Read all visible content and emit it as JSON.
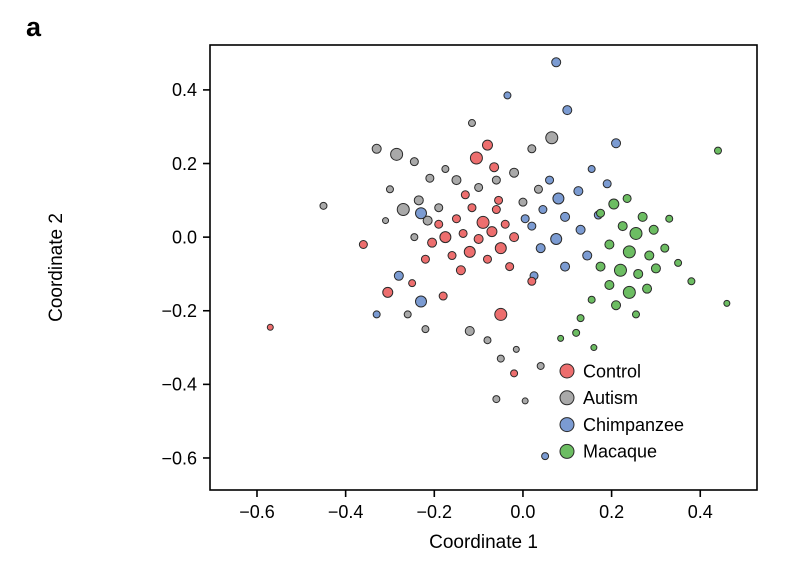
{
  "panel_label": "a",
  "chart_data": {
    "type": "scatter",
    "title": "",
    "xlabel": "Coordinate 1",
    "ylabel": "Coordinate 2",
    "xlim": [
      -0.706,
      0.528
    ],
    "ylim": [
      -0.687,
      0.522
    ],
    "xticks": [
      -0.6,
      -0.4,
      -0.2,
      0.0,
      0.2,
      0.4
    ],
    "xtick_labels": [
      "−0.6",
      "−0.4",
      "−0.2",
      "0.0",
      "0.2",
      "0.4"
    ],
    "yticks": [
      -0.6,
      -0.4,
      -0.2,
      0.0,
      0.2,
      0.4
    ],
    "ytick_labels": [
      "−0.6",
      "−0.4",
      "−0.2",
      "0.0",
      "0.2",
      "0.4"
    ],
    "grid": false,
    "legend_position": "inside-bottom-right",
    "point_stroke": "#2a2a2a",
    "frame_color": "#000000",
    "background": "#ffffff",
    "series": [
      {
        "name": "Control",
        "color": "#ed6e6e",
        "points": [
          [
            -0.08,
            0.25,
            5
          ],
          [
            -0.105,
            0.215,
            6
          ],
          [
            -0.13,
            0.115,
            4
          ],
          [
            -0.055,
            0.1,
            4
          ],
          [
            -0.065,
            0.19,
            4.5
          ],
          [
            -0.36,
            -0.02,
            4
          ],
          [
            -0.57,
            -0.245,
            3
          ],
          [
            -0.305,
            -0.15,
            5
          ],
          [
            -0.25,
            -0.125,
            3.5
          ],
          [
            -0.22,
            -0.06,
            4
          ],
          [
            -0.205,
            -0.015,
            4.5
          ],
          [
            -0.19,
            0.035,
            4
          ],
          [
            -0.175,
            0.0,
            5.5
          ],
          [
            -0.16,
            -0.05,
            4
          ],
          [
            -0.15,
            0.05,
            4
          ],
          [
            -0.14,
            -0.09,
            4.5
          ],
          [
            -0.135,
            0.01,
            4
          ],
          [
            -0.12,
            -0.04,
            5.5
          ],
          [
            -0.115,
            0.08,
            4
          ],
          [
            -0.1,
            -0.005,
            4.5
          ],
          [
            -0.09,
            0.04,
            6
          ],
          [
            -0.08,
            -0.06,
            4
          ],
          [
            -0.07,
            0.015,
            5
          ],
          [
            -0.06,
            0.075,
            4
          ],
          [
            -0.05,
            -0.03,
            5.5
          ],
          [
            -0.04,
            0.035,
            4
          ],
          [
            -0.03,
            -0.08,
            4
          ],
          [
            -0.02,
            0.0,
            4.5
          ],
          [
            -0.05,
            -0.21,
            6
          ],
          [
            -0.02,
            -0.37,
            3.5
          ],
          [
            0.02,
            -0.12,
            4
          ],
          [
            -0.18,
            -0.16,
            4
          ]
        ]
      },
      {
        "name": "Autism",
        "color": "#a9a9a9",
        "points": [
          [
            -0.45,
            0.085,
            3.5
          ],
          [
            -0.33,
            0.24,
            4.5
          ],
          [
            -0.285,
            0.225,
            6
          ],
          [
            -0.245,
            0.205,
            4
          ],
          [
            -0.3,
            0.13,
            3.5
          ],
          [
            -0.27,
            0.075,
            6
          ],
          [
            -0.235,
            0.1,
            4.5
          ],
          [
            -0.21,
            0.16,
            4
          ],
          [
            -0.175,
            0.185,
            3.5
          ],
          [
            -0.15,
            0.155,
            4.5
          ],
          [
            -0.115,
            0.31,
            3.5
          ],
          [
            0.065,
            0.27,
            6
          ],
          [
            0.02,
            0.24,
            4
          ],
          [
            -0.02,
            0.175,
            4.5
          ],
          [
            -0.06,
            0.155,
            4
          ],
          [
            -0.1,
            0.135,
            4
          ],
          [
            -0.19,
            0.08,
            4
          ],
          [
            -0.215,
            0.045,
            4.5
          ],
          [
            -0.245,
            0.0,
            3.5
          ],
          [
            -0.26,
            -0.21,
            3.5
          ],
          [
            -0.22,
            -0.25,
            3.5
          ],
          [
            -0.12,
            -0.255,
            4.5
          ],
          [
            -0.08,
            -0.28,
            3.5
          ],
          [
            -0.05,
            -0.33,
            3.5
          ],
          [
            -0.015,
            -0.305,
            3
          ],
          [
            0.04,
            -0.35,
            3.5
          ],
          [
            -0.06,
            -0.44,
            3.5
          ],
          [
            0.005,
            -0.445,
            3
          ],
          [
            0.0,
            0.095,
            4
          ],
          [
            0.035,
            0.13,
            4
          ],
          [
            -0.31,
            0.045,
            3
          ]
        ]
      },
      {
        "name": "Chimpanzee",
        "color": "#7b9bd2",
        "points": [
          [
            0.075,
            0.475,
            4.5
          ],
          [
            -0.035,
            0.385,
            3.5
          ],
          [
            0.1,
            0.345,
            4.5
          ],
          [
            0.21,
            0.255,
            4.5
          ],
          [
            0.19,
            0.145,
            4
          ],
          [
            0.155,
            0.185,
            3.5
          ],
          [
            0.125,
            0.125,
            4.5
          ],
          [
            0.08,
            0.105,
            5.5
          ],
          [
            0.045,
            0.075,
            4
          ],
          [
            0.095,
            0.055,
            4.5
          ],
          [
            0.13,
            0.02,
            4.5
          ],
          [
            0.075,
            -0.005,
            5.5
          ],
          [
            0.04,
            -0.03,
            4.5
          ],
          [
            0.145,
            -0.05,
            4.5
          ],
          [
            0.095,
            -0.08,
            4.5
          ],
          [
            0.025,
            -0.105,
            4
          ],
          [
            -0.23,
            0.065,
            5.5
          ],
          [
            -0.28,
            -0.105,
            4.5
          ],
          [
            -0.23,
            -0.175,
            5.5
          ],
          [
            -0.33,
            -0.21,
            3.5
          ],
          [
            0.05,
            -0.595,
            3.5
          ],
          [
            0.17,
            0.06,
            4
          ],
          [
            0.02,
            0.03,
            4
          ],
          [
            0.06,
            0.155,
            4
          ],
          [
            0.005,
            0.05,
            4
          ]
        ]
      },
      {
        "name": "Macaque",
        "color": "#6cbd62",
        "points": [
          [
            0.44,
            0.235,
            3.5
          ],
          [
            0.205,
            0.09,
            5
          ],
          [
            0.235,
            0.105,
            4
          ],
          [
            0.175,
            0.065,
            4
          ],
          [
            0.27,
            0.055,
            4.5
          ],
          [
            0.225,
            0.03,
            4.5
          ],
          [
            0.255,
            0.01,
            6
          ],
          [
            0.295,
            0.02,
            4.5
          ],
          [
            0.33,
            0.05,
            3.5
          ],
          [
            0.195,
            -0.02,
            4.5
          ],
          [
            0.24,
            -0.04,
            6
          ],
          [
            0.285,
            -0.05,
            4.5
          ],
          [
            0.32,
            -0.03,
            4
          ],
          [
            0.175,
            -0.08,
            4.5
          ],
          [
            0.22,
            -0.09,
            6
          ],
          [
            0.26,
            -0.1,
            4.5
          ],
          [
            0.3,
            -0.085,
            4.5
          ],
          [
            0.35,
            -0.07,
            3.5
          ],
          [
            0.195,
            -0.13,
            4.5
          ],
          [
            0.24,
            -0.15,
            6
          ],
          [
            0.28,
            -0.14,
            4.5
          ],
          [
            0.155,
            -0.17,
            3.5
          ],
          [
            0.21,
            -0.185,
            4.5
          ],
          [
            0.255,
            -0.21,
            3.5
          ],
          [
            0.38,
            -0.12,
            3.5
          ],
          [
            0.46,
            -0.18,
            3
          ],
          [
            0.12,
            -0.26,
            3.5
          ],
          [
            0.16,
            -0.3,
            3
          ],
          [
            0.085,
            -0.275,
            3
          ],
          [
            0.13,
            -0.22,
            3.5
          ]
        ]
      }
    ],
    "legend": [
      {
        "label": "Control",
        "color": "#ed6e6e"
      },
      {
        "label": "Autism",
        "color": "#a9a9a9"
      },
      {
        "label": "Chimpanzee",
        "color": "#7b9bd2"
      },
      {
        "label": "Macaque",
        "color": "#6cbd62"
      }
    ]
  }
}
